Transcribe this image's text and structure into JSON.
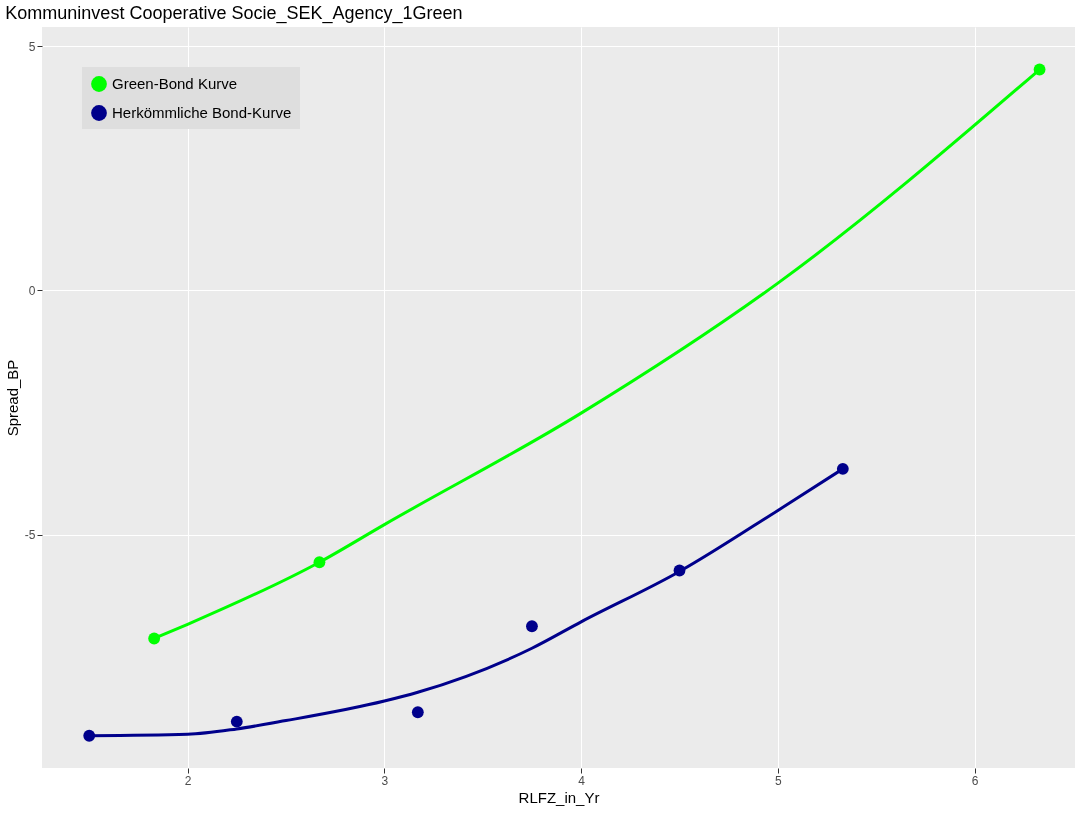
{
  "chart_data": {
    "type": "scatter",
    "title": "Kommuninvest Cooperative Socie_SEK_Agency_1Green",
    "xlabel": "RLFZ_in_Yr",
    "ylabel": "Spread_BP",
    "xlim": [
      1.26,
      6.51
    ],
    "ylim": [
      -9.77,
      5.39
    ],
    "xticks": [
      2,
      3,
      4,
      5,
      6
    ],
    "yticks": [
      -5,
      0,
      5
    ],
    "grid": true,
    "legend": "top left",
    "marker": "circle",
    "series": [
      {
        "name": "Green-Bond Kurve",
        "color": "#00ff00",
        "x": [
          1.83,
          2.67,
          6.33
        ],
        "values": [
          -7.12,
          -5.56,
          4.52
        ]
      },
      {
        "name": "Herkömmliche Bond-Kurve",
        "color": "#00008b",
        "x": [
          1.5,
          2.25,
          3.17,
          3.75,
          4.5,
          5.33
        ],
        "values": [
          -9.11,
          -8.82,
          -8.63,
          -6.87,
          -5.73,
          -3.65
        ]
      },
      {
        "color": "#00ff00",
        "type": "line",
        "line_style": "solid",
        "marker": "none",
        "x": [
          1.83,
          2.0,
          2.67,
          3.0,
          4.0,
          5.0,
          6.33
        ],
        "values": [
          -7.12,
          -6.83,
          -5.56,
          -4.79,
          -2.51,
          0.15,
          4.52
        ]
      },
      {
        "color": "#00008b",
        "type": "line",
        "line_style": "solid",
        "marker": "none",
        "x": [
          1.5,
          2.0,
          2.25,
          2.5,
          3.0,
          3.17,
          3.75,
          4.0,
          4.5,
          5.0,
          5.33
        ],
        "values": [
          -9.11,
          -9.08,
          -8.97,
          -8.8,
          -8.4,
          -8.22,
          -7.32,
          -6.78,
          -5.75,
          -4.5,
          -3.65
        ]
      }
    ]
  }
}
